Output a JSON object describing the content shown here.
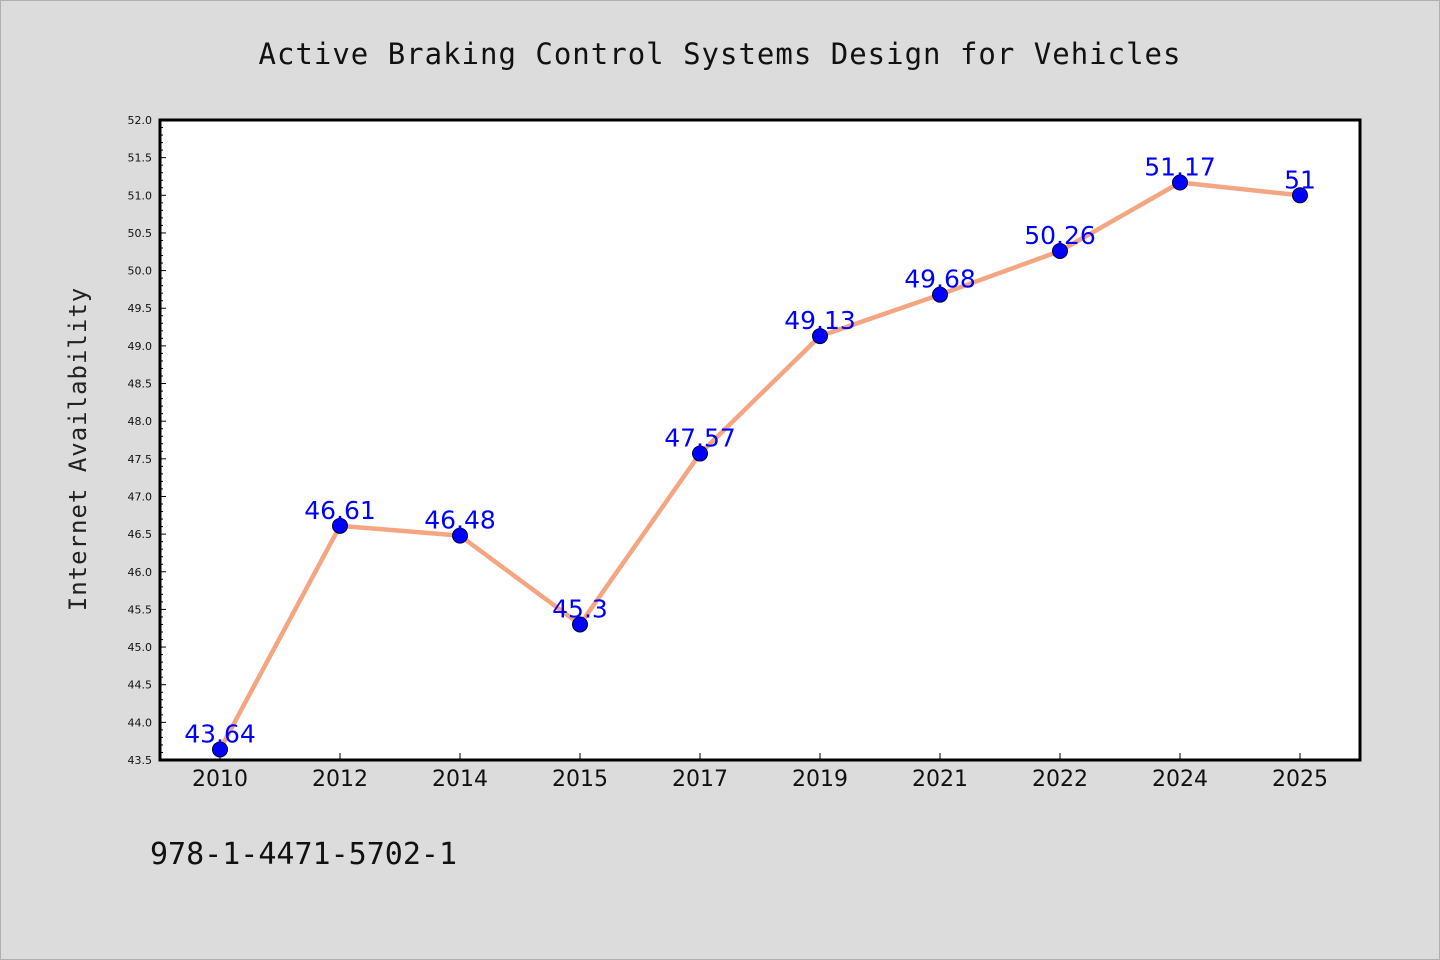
{
  "chart_data": {
    "type": "line",
    "title": "Active Braking Control Systems Design for Vehicles",
    "ylabel": "Internet Availability",
    "xlabel": "",
    "categories": [
      "2010",
      "2012",
      "2014",
      "2015",
      "2017",
      "2019",
      "2021",
      "2022",
      "2024",
      "2025"
    ],
    "values": [
      43.64,
      46.61,
      46.48,
      45.3,
      47.57,
      49.13,
      49.68,
      50.26,
      51.17,
      51
    ],
    "data_labels": [
      "43.64",
      "46.61",
      "46.48",
      "45.3",
      "47.57",
      "49.13",
      "49.68",
      "50.26",
      "51.17",
      "51"
    ],
    "ylim": [
      43.5,
      52.0
    ],
    "yticks": [
      "43.5",
      "44.0",
      "44.5",
      "45.0",
      "45.5",
      "46.0",
      "46.5",
      "47.0",
      "47.5",
      "48.0",
      "48.5",
      "49.0",
      "49.5",
      "50.0",
      "50.5",
      "51.0",
      "51.5",
      "52.0"
    ],
    "grid": false,
    "line_color": "#f4a582",
    "marker_color": "#0000ff",
    "label_color": "#0000ff"
  },
  "footer": {
    "isbn": "978-1-4471-5702-1"
  }
}
